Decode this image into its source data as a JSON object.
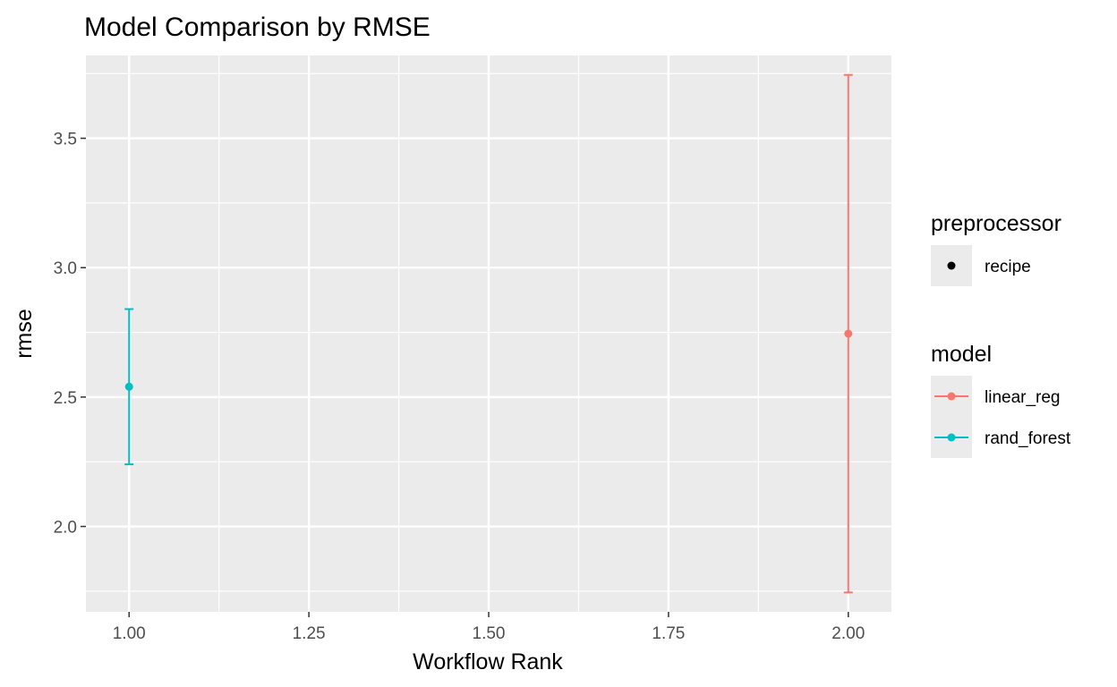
{
  "chart_data": {
    "type": "scatter",
    "title": "Model Comparison by RMSE",
    "xlabel": "Workflow Rank",
    "ylabel": "rmse",
    "xlim": [
      0.94,
      2.06
    ],
    "ylim": [
      1.67,
      3.82
    ],
    "x_ticks": [
      1.0,
      1.25,
      1.5,
      1.75,
      2.0
    ],
    "x_tick_labels": [
      "1.00",
      "1.25",
      "1.50",
      "1.75",
      "2.00"
    ],
    "y_ticks": [
      2.0,
      2.5,
      3.0,
      3.5
    ],
    "y_tick_labels": [
      "2.0",
      "2.5",
      "3.0",
      "3.5"
    ],
    "grid": true,
    "legend_position": "right",
    "series": [
      {
        "name": "linear_reg",
        "color": "#f8766d",
        "x": 2,
        "y": 2.745,
        "ymin": 1.745,
        "ymax": 3.745
      },
      {
        "name": "rand_forest",
        "color": "#00bfc4",
        "x": 1,
        "y": 2.54,
        "ymin": 2.24,
        "ymax": 2.84
      }
    ],
    "legends": [
      {
        "title": "preprocessor",
        "items": [
          {
            "label": "recipe",
            "color": "#000000",
            "line": false
          }
        ]
      },
      {
        "title": "model",
        "items": [
          {
            "label": "linear_reg",
            "color": "#f8766d",
            "line": true
          },
          {
            "label": "rand_forest",
            "color": "#00bfc4",
            "line": true
          }
        ]
      }
    ]
  }
}
